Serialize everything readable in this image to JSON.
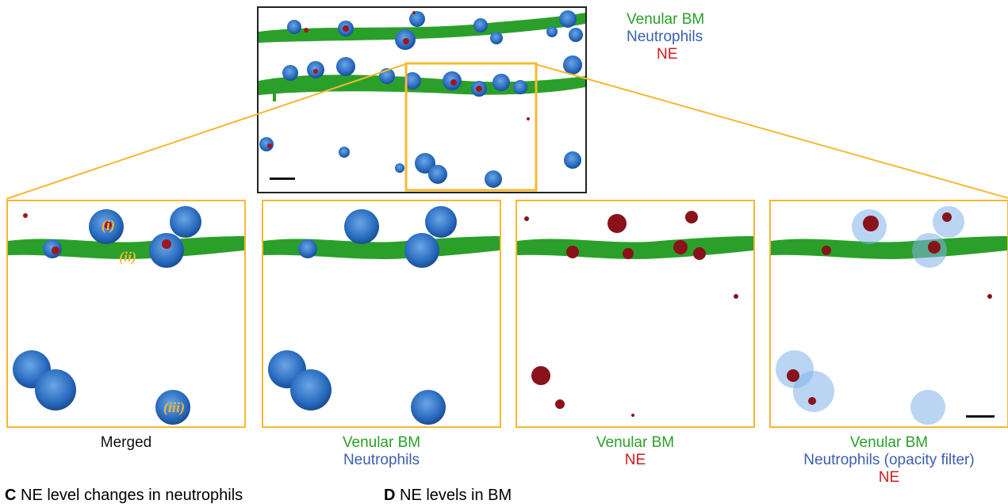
{
  "colors": {
    "green": "#2aa02a",
    "blue": "#3a5fae",
    "red": "#d01c1c",
    "black": "#111111",
    "highlight_frame": "#f5b830",
    "overview_frame": "#222222"
  },
  "legend": [
    {
      "text": "Venular BM",
      "color": "green"
    },
    {
      "text": "Neutrophils",
      "color": "blue"
    },
    {
      "text": "NE",
      "color": "red"
    }
  ],
  "panels": [
    {
      "id": "merged",
      "caption_lines": [
        {
          "text": "Merged",
          "color": "black"
        }
      ],
      "cell_labels": [
        "(i)",
        "(ii)",
        "(iii)"
      ]
    },
    {
      "id": "bm-neutrophils",
      "caption_lines": [
        {
          "text": "Venular BM",
          "color": "green"
        },
        {
          "text": "Neutrophils",
          "color": "blue"
        }
      ]
    },
    {
      "id": "bm-ne",
      "caption_lines": [
        {
          "text": "Venular BM",
          "color": "green"
        },
        {
          "text": "NE",
          "color": "red"
        }
      ]
    },
    {
      "id": "bm-opacity",
      "caption_lines": [
        {
          "text": "Venular BM",
          "color": "green"
        },
        {
          "text": "Neutrophils (opacity filter)",
          "color": "blue"
        },
        {
          "text": "NE",
          "color": "red"
        }
      ]
    }
  ],
  "sections": {
    "c_letter": "C",
    "c_title": "NE level changes in neutrophils",
    "d_letter": "D",
    "d_title": "NE levels in BM"
  }
}
